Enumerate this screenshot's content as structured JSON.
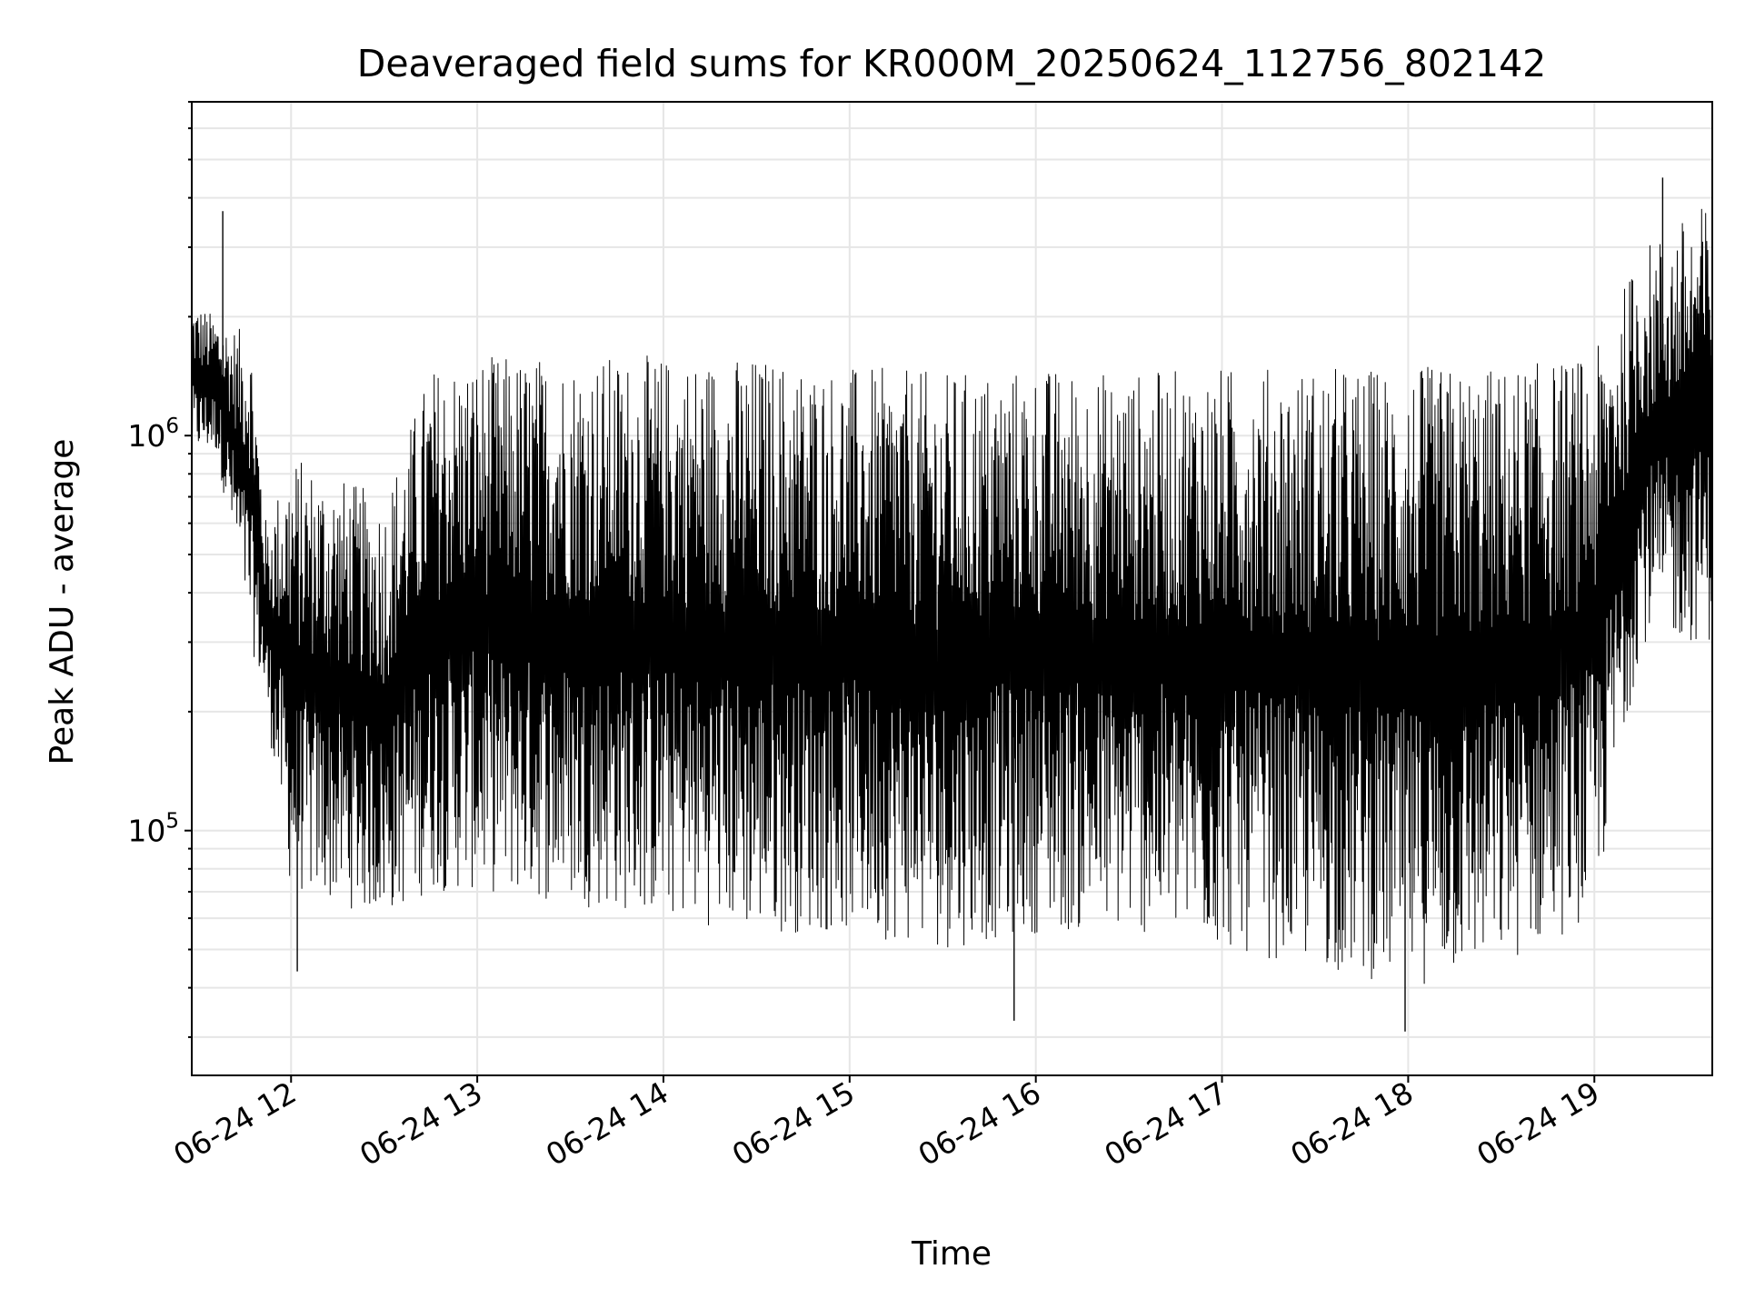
{
  "chart_data": {
    "type": "line",
    "title": "Deaveraged field sums for KR000M_20250624_112756_802142",
    "xlabel": "Time",
    "ylabel": "Peak ADU - average",
    "x_ticks": [
      "06-24 12",
      "06-24 13",
      "06-24 14",
      "06-24 15",
      "06-24 16",
      "06-24 17",
      "06-24 18",
      "06-24 19"
    ],
    "y_ticks": [
      {
        "base": "10",
        "exponent": "5",
        "value": 100000
      },
      {
        "base": "10",
        "exponent": "6",
        "value": 1000000
      }
    ],
    "x_range": [
      "2025-06-24T11:28",
      "2025-06-24T19:38"
    ],
    "y_range": [
      24000,
      7000000
    ],
    "y_scale": "log",
    "grid": true,
    "line_color": "#000000",
    "grid_color": "#e6e6e6",
    "series": [
      {
        "envelope": [
          {
            "t": "2025-06-24T11:28",
            "low": 900000,
            "high": 2200000
          },
          {
            "t": "2025-06-24T11:36",
            "low": 900000,
            "high": 2000000
          },
          {
            "t": "2025-06-24T11:47",
            "low": 300000,
            "high": 1800000
          },
          {
            "t": "2025-06-24T11:52",
            "low": 200000,
            "high": 600000
          },
          {
            "t": "2025-06-24T12:00",
            "low": 70000,
            "high": 900000
          },
          {
            "t": "2025-06-24T12:30",
            "low": 60000,
            "high": 700000
          },
          {
            "t": "2025-06-24T12:45",
            "low": 70000,
            "high": 1500000
          },
          {
            "t": "2025-06-24T13:00",
            "low": 70000,
            "high": 1600000
          },
          {
            "t": "2025-06-24T13:30",
            "low": 65000,
            "high": 1600000
          },
          {
            "t": "2025-06-24T14:00",
            "low": 60000,
            "high": 1600000
          },
          {
            "t": "2025-06-24T14:30",
            "low": 55000,
            "high": 1600000
          },
          {
            "t": "2025-06-24T15:00",
            "low": 55000,
            "high": 1500000
          },
          {
            "t": "2025-06-24T15:30",
            "low": 50000,
            "high": 1450000
          },
          {
            "t": "2025-06-24T16:00",
            "low": 55000,
            "high": 1500000
          },
          {
            "t": "2025-06-24T16:30",
            "low": 55000,
            "high": 1450000
          },
          {
            "t": "2025-06-24T17:00",
            "low": 50000,
            "high": 1500000
          },
          {
            "t": "2025-06-24T17:30",
            "low": 45000,
            "high": 1500000
          },
          {
            "t": "2025-06-24T18:00",
            "low": 40000,
            "high": 1500000
          },
          {
            "t": "2025-06-24T18:30",
            "low": 45000,
            "high": 1500000
          },
          {
            "t": "2025-06-24T19:00",
            "low": 60000,
            "high": 1600000
          },
          {
            "t": "2025-06-24T19:15",
            "low": 300000,
            "high": 3000000
          },
          {
            "t": "2025-06-24T19:38",
            "low": 300000,
            "high": 4000000
          }
        ],
        "notable_values": [
          {
            "t": "2025-06-24T11:38",
            "value": 3700000
          },
          {
            "t": "2025-06-24T12:02",
            "value": 44000
          },
          {
            "t": "2025-06-24T15:53",
            "value": 33000
          },
          {
            "t": "2025-06-24T17:59",
            "value": 31000
          },
          {
            "t": "2025-06-24T19:22",
            "value": 4500000
          }
        ]
      }
    ]
  }
}
